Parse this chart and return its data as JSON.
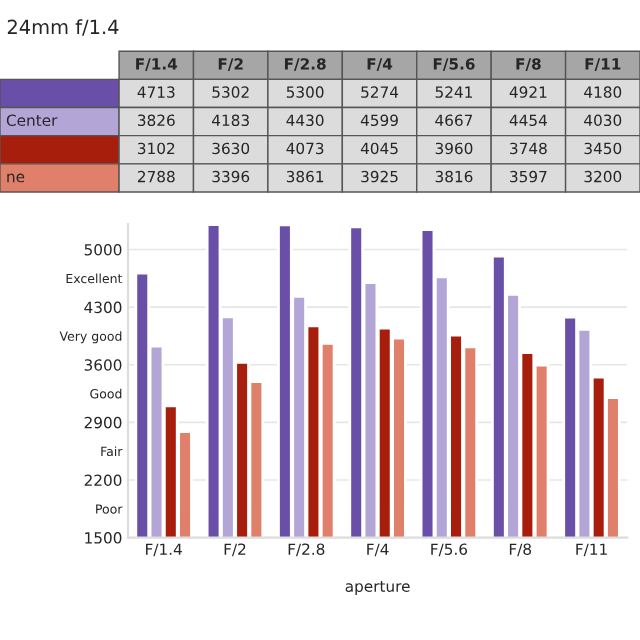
{
  "chart_data": {
    "type": "bar",
    "title": "24mm f/1.4",
    "xlabel": "aperture",
    "categories": [
      "F/1.4",
      "F/2",
      "F/2.8",
      "F/4",
      "F/5.6",
      "F/8",
      "F/11"
    ],
    "series": [
      {
        "name": null,
        "color": "#6a4fa8",
        "values": [
          4713,
          5302,
          5300,
          5274,
          5241,
          4921,
          4180
        ]
      },
      {
        "name": "Center",
        "color": "#b3a5d6",
        "values": [
          3826,
          4183,
          4430,
          4599,
          4667,
          4454,
          4030
        ]
      },
      {
        "name": null,
        "color": "#a81e0c",
        "values": [
          3102,
          3630,
          4073,
          4045,
          3960,
          3748,
          3450
        ]
      },
      {
        "name": "ne",
        "color": "#e0806a",
        "values": [
          2788,
          3396,
          3861,
          3925,
          3816,
          3597,
          3200
        ]
      }
    ],
    "data_labels": true,
    "ylim": [
      1500,
      5310
    ],
    "yticks": [
      1500,
      {
        "value": 1850,
        "label": "Poor"
      },
      2200,
      {
        "value": 2550,
        "label": "Fair"
      },
      2900,
      {
        "value": 3250,
        "label": "Good"
      },
      3600,
      {
        "value": 3950,
        "label": "Very good"
      },
      4300,
      {
        "value": 4650,
        "label": "Excellent"
      },
      5000
    ],
    "grid": "y"
  }
}
